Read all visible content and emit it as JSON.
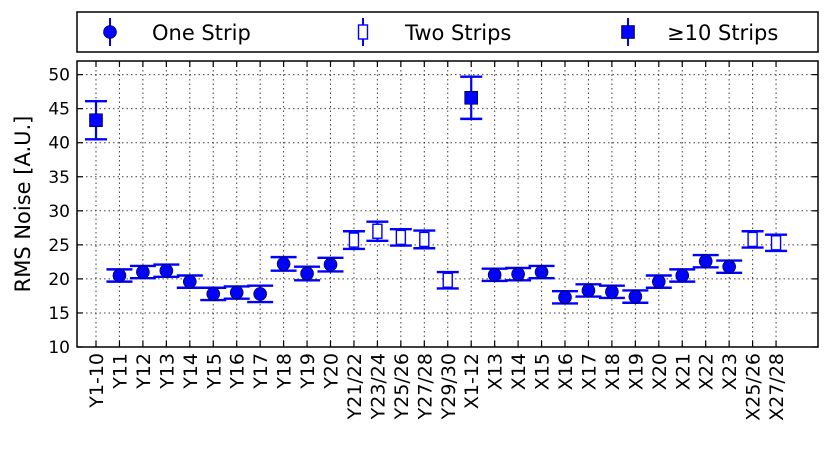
{
  "chart_data": {
    "type": "scatter",
    "ylabel": "RMS Noise [A.U.]",
    "ylim": [
      10,
      52
    ],
    "yticks": [
      10,
      15,
      20,
      25,
      30,
      35,
      40,
      45,
      50
    ],
    "grid": true,
    "legend_position": "top",
    "colors": {
      "primary": "#0000ff",
      "axis": "#000000"
    },
    "series": [
      {
        "name": "One Strip",
        "marker": "filled-circle",
        "errorbar_width": "wide"
      },
      {
        "name": "Two Strips",
        "marker": "open-rectangle",
        "errorbar_width": "narrow"
      },
      {
        "name": "≥10 Strips",
        "marker": "filled-square",
        "errorbar_width": "narrow"
      }
    ],
    "points": [
      {
        "label": "Y1-10",
        "series": 2,
        "y": 43.3,
        "err": 2.8
      },
      {
        "label": "Y11",
        "series": 0,
        "y": 20.5,
        "err": 0.9
      },
      {
        "label": "Y12",
        "series": 0,
        "y": 21.0,
        "err": 0.9
      },
      {
        "label": "Y13",
        "series": 0,
        "y": 21.2,
        "err": 0.9
      },
      {
        "label": "Y14",
        "series": 0,
        "y": 19.6,
        "err": 0.9
      },
      {
        "label": "Y15",
        "series": 0,
        "y": 17.8,
        "err": 0.9
      },
      {
        "label": "Y16",
        "series": 0,
        "y": 18.0,
        "err": 0.9
      },
      {
        "label": "Y17",
        "series": 0,
        "y": 17.8,
        "err": 1.2
      },
      {
        "label": "Y18",
        "series": 0,
        "y": 22.2,
        "err": 1.0
      },
      {
        "label": "Y19",
        "series": 0,
        "y": 20.8,
        "err": 1.0
      },
      {
        "label": "Y20",
        "series": 0,
        "y": 22.1,
        "err": 1.0
      },
      {
        "label": "Y21/22",
        "series": 1,
        "y": 25.7,
        "err": 1.3
      },
      {
        "label": "Y23/24",
        "series": 1,
        "y": 27.0,
        "err": 1.4
      },
      {
        "label": "Y25/26",
        "series": 1,
        "y": 26.1,
        "err": 1.2
      },
      {
        "label": "Y27/28",
        "series": 1,
        "y": 25.8,
        "err": 1.3
      },
      {
        "label": "Y29/30",
        "series": 1,
        "y": 19.8,
        "err": 1.2
      },
      {
        "label": "X1-12",
        "series": 2,
        "y": 46.6,
        "err": 3.1
      },
      {
        "label": "X13",
        "series": 0,
        "y": 20.6,
        "err": 0.9
      },
      {
        "label": "X14",
        "series": 0,
        "y": 20.7,
        "err": 0.9
      },
      {
        "label": "X15",
        "series": 0,
        "y": 21.0,
        "err": 0.9
      },
      {
        "label": "X16",
        "series": 0,
        "y": 17.3,
        "err": 0.9
      },
      {
        "label": "X17",
        "series": 0,
        "y": 18.3,
        "err": 0.9
      },
      {
        "label": "X18",
        "series": 0,
        "y": 18.1,
        "err": 0.9
      },
      {
        "label": "X19",
        "series": 0,
        "y": 17.4,
        "err": 0.9
      },
      {
        "label": "X20",
        "series": 0,
        "y": 19.6,
        "err": 0.9
      },
      {
        "label": "X21",
        "series": 0,
        "y": 20.5,
        "err": 0.9
      },
      {
        "label": "X22",
        "series": 0,
        "y": 22.6,
        "err": 0.9
      },
      {
        "label": "X23",
        "series": 0,
        "y": 21.8,
        "err": 0.9
      },
      {
        "label": "X25/26",
        "series": 1,
        "y": 25.8,
        "err": 1.2
      },
      {
        "label": "X27/28",
        "series": 1,
        "y": 25.3,
        "err": 1.2
      }
    ]
  }
}
